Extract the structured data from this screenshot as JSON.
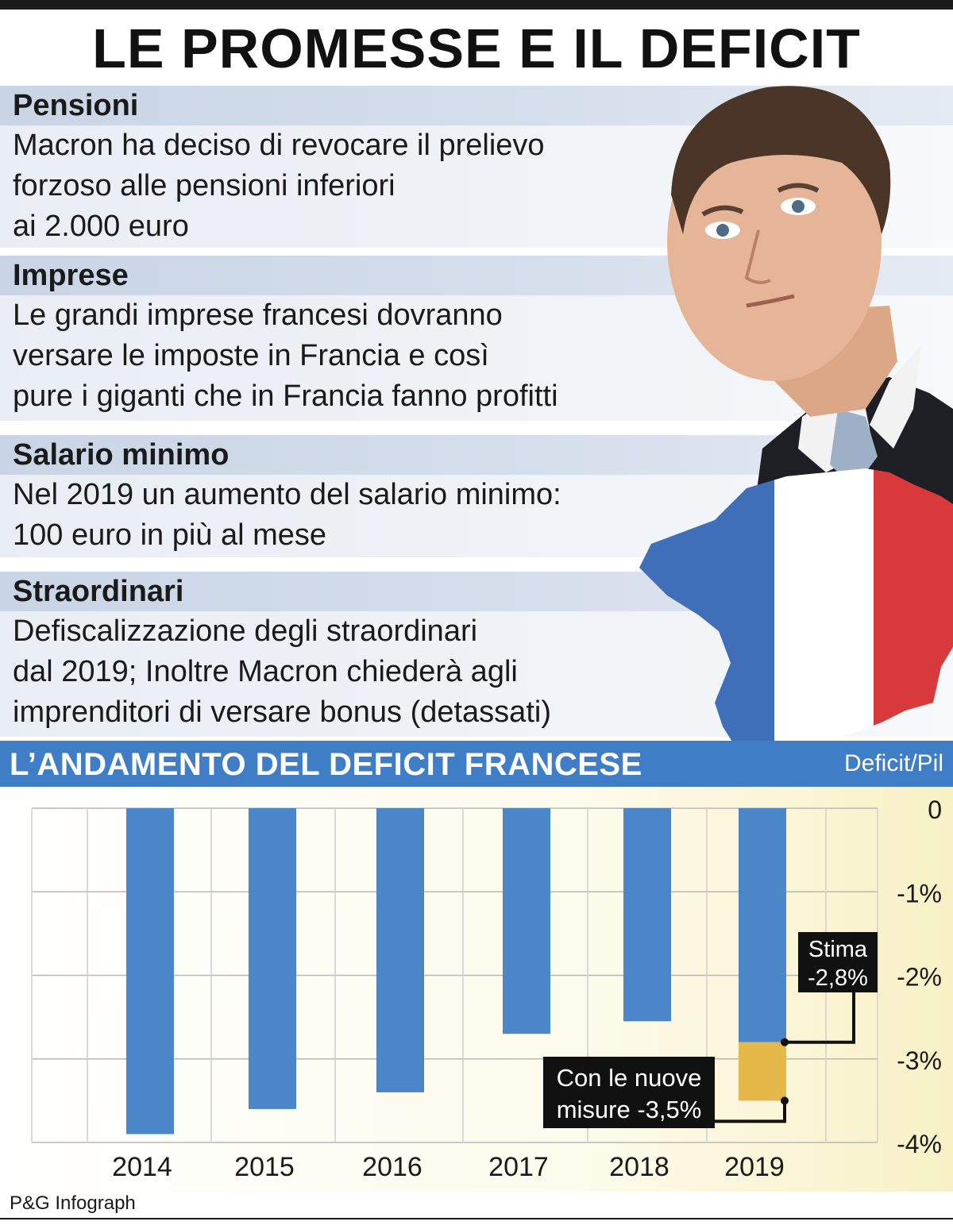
{
  "title": "LE PROMESSE E IL DEFICIT",
  "sections": [
    {
      "heading": "Pensioni",
      "lines": [
        "Macron ha deciso di revocare il prelievo",
        "forzoso alle pensioni inferiori",
        "ai 2.000 euro"
      ]
    },
    {
      "heading": "Imprese",
      "lines": [
        "Le grandi imprese francesi dovranno",
        "versare le imposte in Francia e così",
        "pure i giganti che in Francia fanno profitti"
      ]
    },
    {
      "heading": "Salario minimo",
      "lines": [
        "Nel 2019 un aumento del salario minimo:",
        "100 euro in più al mese"
      ]
    },
    {
      "heading": "Straordinari",
      "lines": [
        "Defiscalizzazione degli straordinari",
        "dal 2019; Inoltre Macron chiederà agli",
        "imprenditori di versare bonus (detassati)"
      ]
    }
  ],
  "colors": {
    "bar": "#4a86c8",
    "bar_new_measures": "#e5b84a",
    "band": "#3f7ec7",
    "flag_blue": "#3e6fb8",
    "flag_red": "#d8393a"
  },
  "chart_data": {
    "type": "bar",
    "title": "L’ANDAMENTO DEL DEFICIT FRANCESE",
    "ylabel": "Deficit/Pil",
    "categories": [
      "2014",
      "2015",
      "2016",
      "2017",
      "2018",
      "2019"
    ],
    "values": [
      -3.9,
      -3.6,
      -3.4,
      -2.7,
      -2.55,
      -2.8
    ],
    "ylim": [
      -4,
      0
    ],
    "yticks": [
      0,
      -1,
      -2,
      -3,
      -4
    ],
    "ytick_labels": [
      "0",
      "-1%",
      "-2%",
      "-3%",
      "-4%"
    ],
    "extra_segment": {
      "category": "2019",
      "from": -2.8,
      "to": -3.5
    },
    "grid": true,
    "annotations": [
      {
        "lines": [
          "Stima",
          "-2,8%"
        ],
        "value": -2.8
      },
      {
        "lines": [
          "Con le nuove",
          "misure -3,5%"
        ],
        "value": -3.5
      }
    ]
  },
  "source": "P&G Infograph"
}
